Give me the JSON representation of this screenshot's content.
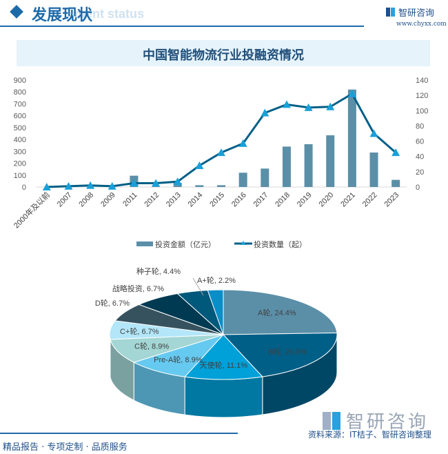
{
  "header": {
    "title": "发展现状",
    "subtitle_ghost": "ment status",
    "logo_text": "智研咨询",
    "url": "www.chyxx.com"
  },
  "chart_title": "中国智能物流行业投融资情况",
  "colors": {
    "brand": "#1e6aa8",
    "bar": "#5b8fa8",
    "line": "#005f87",
    "marker": "#1aa0d8",
    "title_band": "#e6f3fb"
  },
  "chart_data": [
    {
      "type": "bar+line",
      "title": "中国智能物流行业投融资情况",
      "categories": [
        "2000年及以前",
        "2007",
        "2008",
        "2009",
        "2011",
        "2012",
        "2013",
        "2014",
        "2015",
        "2016",
        "2017",
        "2018",
        "2019",
        "2020",
        "2021",
        "2022",
        "2023"
      ],
      "series": [
        {
          "name": "投资金额（亿元）",
          "type": "bar",
          "axis": "left",
          "values": [
            0,
            0,
            0,
            0,
            95,
            5,
            35,
            15,
            15,
            120,
            155,
            340,
            360,
            435,
            820,
            290,
            60
          ]
        },
        {
          "name": "投资数量（起）",
          "type": "line",
          "axis": "right",
          "marker": "triangle",
          "values": [
            0,
            1,
            2,
            1,
            5,
            5,
            7,
            28,
            45,
            57,
            97,
            108,
            104,
            105,
            122,
            70,
            45
          ]
        }
      ],
      "left_axis": {
        "min": 0,
        "max": 900,
        "ticks": [
          0,
          100,
          200,
          300,
          400,
          500,
          600,
          700,
          800,
          900
        ]
      },
      "right_axis": {
        "min": 0,
        "max": 140,
        "ticks": [
          0,
          20,
          40,
          60,
          80,
          100,
          120,
          140
        ]
      },
      "legend": [
        "投资金额（亿元）",
        "投资数量（起）"
      ],
      "legend_position": "bottom",
      "grid": false
    },
    {
      "type": "pie",
      "style": "3d",
      "slices": [
        {
          "label": "A轮",
          "value": 24.4,
          "display": "A轮, 24.4%",
          "color": "#5b8fa8"
        },
        {
          "label": "B轮",
          "value": 20.0,
          "display": "B轮, 20.0%",
          "color": "#005f87"
        },
        {
          "label": "天使轮",
          "value": 11.1,
          "display": "天使轮, 11.1%",
          "color": "#00a0d8"
        },
        {
          "label": "Pre-A轮",
          "value": 8.9,
          "display": "Pre-A轮, 8.9%",
          "color": "#66c9f0"
        },
        {
          "label": "C轮",
          "value": 8.9,
          "display": "C轮, 8.9%",
          "color": "#a3d6d4"
        },
        {
          "label": "C+轮",
          "value": 6.7,
          "display": "C+轮, 6.7%",
          "color": "#b3e6f8"
        },
        {
          "label": "D轮",
          "value": 6.7,
          "display": "D轮, 6.7%",
          "color": "#37525f"
        },
        {
          "label": "战略投资",
          "value": 6.7,
          "display": "战略投资, 6.7%",
          "color": "#003a52"
        },
        {
          "label": "种子轮",
          "value": 4.4,
          "display": "种子轮, 4.4%",
          "color": "#00587a"
        },
        {
          "label": "A+轮",
          "value": 2.2,
          "display": "A+轮, 2.2%",
          "color": "#0a8ec8"
        }
      ]
    }
  ],
  "footer": {
    "tagline": "精品报告 · 专项定制 · 品质服务",
    "source": "资料来源：IT桔子、智研咨询整理",
    "logo_text": "智研咨询"
  }
}
